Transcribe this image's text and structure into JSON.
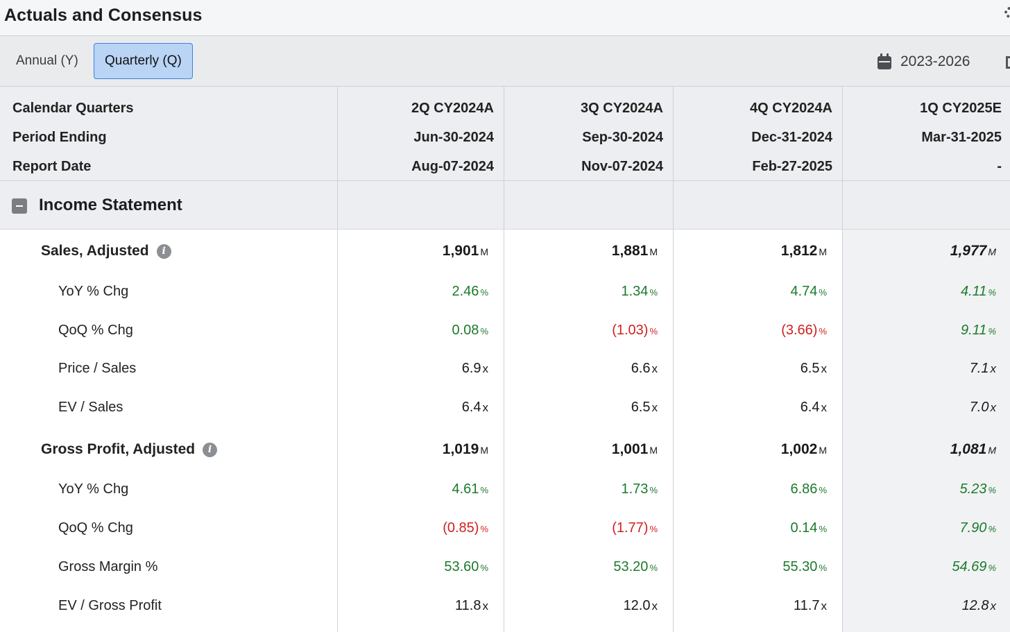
{
  "title": "Actuals and Consensus",
  "tabs": [
    {
      "label": "Annual (Y)",
      "active": false
    },
    {
      "label": "Quarterly (Q)",
      "active": true
    }
  ],
  "date_range": "2023-2026",
  "header": {
    "row_labels": [
      "Calendar Quarters",
      "Period Ending",
      "Report Date"
    ],
    "columns": [
      {
        "quarter": "2Q CY2024A",
        "period_ending": "Jun-30-2024",
        "report_date": "Aug-07-2024"
      },
      {
        "quarter": "3Q CY2024A",
        "period_ending": "Sep-30-2024",
        "report_date": "Nov-07-2024"
      },
      {
        "quarter": "4Q CY2024A",
        "period_ending": "Dec-31-2024",
        "report_date": "Feb-27-2025"
      },
      {
        "quarter": "1Q CY2025E",
        "period_ending": "Mar-31-2025",
        "report_date": "-"
      }
    ]
  },
  "section_title": "Income Statement",
  "colors": {
    "positive": "#1c7a2c",
    "negative": "#d02020",
    "active_tab": "#b9d4f5",
    "active_border": "#3b82e0"
  },
  "rows": [
    {
      "label": "Sales, Adjusted",
      "type": "main",
      "info": true,
      "unit": "M",
      "values": [
        "1,901",
        "1,881",
        "1,812",
        "1,977"
      ]
    },
    {
      "label": "YoY % Chg",
      "type": "sub",
      "unit": "%",
      "values": [
        "2.46",
        "1.34",
        "4.74",
        "4.11"
      ],
      "tone": [
        "green",
        "green",
        "green",
        "green"
      ]
    },
    {
      "label": "QoQ % Chg",
      "type": "sub",
      "unit": "%",
      "values": [
        "0.08",
        "(1.03)",
        "(3.66)",
        "9.11"
      ],
      "tone": [
        "green",
        "red",
        "red",
        "green"
      ]
    },
    {
      "label": "Price / Sales",
      "type": "sub",
      "unit": "x",
      "values": [
        "6.9",
        "6.6",
        "6.5",
        "7.1"
      ]
    },
    {
      "label": "EV / Sales",
      "type": "sub",
      "unit": "x",
      "values": [
        "6.4",
        "6.5",
        "6.4",
        "7.0"
      ]
    },
    {
      "label": "Gross Profit, Adjusted",
      "type": "main",
      "info": true,
      "unit": "M",
      "values": [
        "1,019",
        "1,001",
        "1,002",
        "1,081"
      ]
    },
    {
      "label": "YoY % Chg",
      "type": "sub",
      "unit": "%",
      "values": [
        "4.61",
        "1.73",
        "6.86",
        "5.23"
      ],
      "tone": [
        "green",
        "green",
        "green",
        "green"
      ]
    },
    {
      "label": "QoQ % Chg",
      "type": "sub",
      "unit": "%",
      "values": [
        "(0.85)",
        "(1.77)",
        "0.14",
        "7.90"
      ],
      "tone": [
        "red",
        "red",
        "green",
        "green"
      ]
    },
    {
      "label": "Gross Margin %",
      "type": "sub",
      "unit": "%",
      "values": [
        "53.60",
        "53.20",
        "55.30",
        "54.69"
      ],
      "tone": [
        "green",
        "green",
        "green",
        "green"
      ]
    },
    {
      "label": "EV / Gross Profit",
      "type": "sub",
      "unit": "x",
      "values": [
        "11.8",
        "12.0",
        "11.7",
        "12.8"
      ]
    }
  ]
}
